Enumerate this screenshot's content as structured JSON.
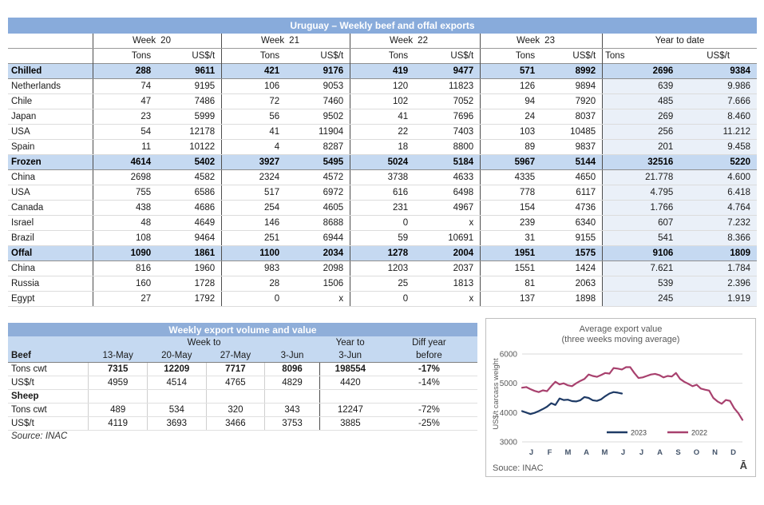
{
  "colors": {
    "title_bar": "#88abdb",
    "subtitle_bar": "#8faed9",
    "section_row": "#c5d9f1",
    "ytd_block": "#eaf0f8",
    "line_2023": "#1f3b66",
    "line_2022": "#a8416e"
  },
  "table1": {
    "title": "Uruguay – Weekly beef and offal exports",
    "week_label": "Week",
    "weeks": [
      "20",
      "21",
      "22",
      "23"
    ],
    "ytd_label": "Year to date",
    "tons_label": "Tons",
    "usd_label": "US$/t",
    "rows": [
      {
        "label": "Chilled",
        "type": "section",
        "values": [
          "288",
          "9611",
          "421",
          "9176",
          "419",
          "9477",
          "571",
          "8992",
          "2696",
          "9384"
        ]
      },
      {
        "label": "Netherlands",
        "type": "country",
        "values": [
          "74",
          "9195",
          "106",
          "9053",
          "120",
          "11823",
          "126",
          "9894",
          "639",
          "9.986"
        ]
      },
      {
        "label": "Chile",
        "type": "country",
        "values": [
          "47",
          "7486",
          "72",
          "7460",
          "102",
          "7052",
          "94",
          "7920",
          "485",
          "7.666"
        ]
      },
      {
        "label": "Japan",
        "type": "country",
        "values": [
          "23",
          "5999",
          "56",
          "9502",
          "41",
          "7696",
          "24",
          "8037",
          "269",
          "8.460"
        ]
      },
      {
        "label": "USA",
        "type": "country",
        "values": [
          "54",
          "12178",
          "41",
          "11904",
          "22",
          "7403",
          "103",
          "10485",
          "256",
          "11.212"
        ]
      },
      {
        "label": "Spain",
        "type": "country",
        "values": [
          "11",
          "10122",
          "4",
          "8287",
          "18",
          "8800",
          "89",
          "9837",
          "201",
          "9.458"
        ]
      },
      {
        "label": "Frozen",
        "type": "section",
        "values": [
          "4614",
          "5402",
          "3927",
          "5495",
          "5024",
          "5184",
          "5967",
          "5144",
          "32516",
          "5220"
        ]
      },
      {
        "label": "China",
        "type": "country",
        "values": [
          "2698",
          "4582",
          "2324",
          "4572",
          "3738",
          "4633",
          "4335",
          "4650",
          "21.778",
          "4.600"
        ]
      },
      {
        "label": "USA",
        "type": "country",
        "values": [
          "755",
          "6586",
          "517",
          "6972",
          "616",
          "6498",
          "778",
          "6117",
          "4.795",
          "6.418"
        ]
      },
      {
        "label": "Canada",
        "type": "country",
        "values": [
          "438",
          "4686",
          "254",
          "4605",
          "231",
          "4967",
          "154",
          "4736",
          "1.766",
          "4.764"
        ]
      },
      {
        "label": "Israel",
        "type": "country",
        "values": [
          "48",
          "4649",
          "146",
          "8688",
          "0",
          "x",
          "239",
          "6340",
          "607",
          "7.232"
        ]
      },
      {
        "label": "Brazil",
        "type": "country",
        "values": [
          "108",
          "9464",
          "251",
          "6944",
          "59",
          "10691",
          "31",
          "9155",
          "541",
          "8.366"
        ]
      },
      {
        "label": "Offal",
        "type": "section",
        "values": [
          "1090",
          "1861",
          "1100",
          "2034",
          "1278",
          "2004",
          "1951",
          "1575",
          "9106",
          "1809"
        ]
      },
      {
        "label": "China",
        "type": "country",
        "values": [
          "816",
          "1960",
          "983",
          "2098",
          "1203",
          "2037",
          "1551",
          "1424",
          "7.621",
          "1.784"
        ]
      },
      {
        "label": "Russia",
        "type": "country",
        "values": [
          "160",
          "1728",
          "28",
          "1506",
          "25",
          "1813",
          "81",
          "2063",
          "539",
          "2.396"
        ]
      },
      {
        "label": "Egypt",
        "type": "country",
        "values": [
          "27",
          "1792",
          "0",
          "x",
          "0",
          "x",
          "137",
          "1898",
          "245",
          "1.919"
        ]
      }
    ]
  },
  "table2": {
    "title": "Weekly export volume and value",
    "week_to_label": "Week to",
    "year_to_label": "Year to",
    "diff_label": "Diff year",
    "beef_label": "Beef",
    "col_headers": [
      "13-May",
      "20-May",
      "27-May",
      "3-Jun",
      "3-Jun",
      "before"
    ],
    "rows": [
      {
        "label": "Tons cwt",
        "section": false,
        "bold_values": true,
        "values": [
          "7315",
          "12209",
          "7717",
          "8096",
          "198554",
          "-17%"
        ]
      },
      {
        "label": "US$/t",
        "section": false,
        "bold_values": false,
        "values": [
          "4959",
          "4514",
          "4765",
          "4829",
          "4420",
          "-14%"
        ]
      },
      {
        "label": "Sheep",
        "section": true,
        "bold_values": false,
        "values": [
          "",
          "",
          "",
          "",
          "",
          ""
        ]
      },
      {
        "label": "Tons cwt",
        "section": false,
        "bold_values": false,
        "values": [
          "489",
          "534",
          "320",
          "343",
          "12247",
          "-72%"
        ]
      },
      {
        "label": "US$/t",
        "section": false,
        "bold_values": false,
        "values": [
          "4119",
          "3693",
          "3466",
          "3753",
          "3885",
          "-25%"
        ]
      }
    ],
    "source": "Source: INAC"
  },
  "chart_data": {
    "type": "line",
    "title": "Average export  value",
    "subtitle": "(three weeks moving average)",
    "ylabel": "US$/t carcass weight",
    "ylim": [
      3000,
      6000
    ],
    "yticks": [
      6000,
      5000,
      4000,
      3000
    ],
    "x_labels": [
      "J",
      "F",
      "M",
      "A",
      "M",
      "J",
      "J",
      "A",
      "S",
      "O",
      "N",
      "D"
    ],
    "x_unit": "week",
    "grid": true,
    "legend_position": "bottom-inside",
    "source": "Souce: INAC",
    "corner_mark": "Ā",
    "legend": [
      {
        "label": "2023",
        "color": "#1f3b66"
      },
      {
        "label": "2022",
        "color": "#a8416e"
      }
    ],
    "series": [
      {
        "name": "2022",
        "color": "#a8416e",
        "values": [
          4850,
          4870,
          4800,
          4740,
          4700,
          4760,
          4730,
          4900,
          5050,
          4960,
          5000,
          4930,
          4900,
          5000,
          5080,
          5150,
          5300,
          5250,
          5220,
          5280,
          5350,
          5330,
          5520,
          5500,
          5470,
          5550,
          5550,
          5350,
          5180,
          5200,
          5250,
          5300,
          5320,
          5280,
          5200,
          5250,
          5230,
          5350,
          5150,
          5050,
          4980,
          4900,
          4950,
          4820,
          4780,
          4750,
          4500,
          4380,
          4300,
          4430,
          4400,
          4150,
          3980,
          3750
        ]
      },
      {
        "name": "2023",
        "color": "#1f3b66",
        "values": [
          4050,
          4000,
          3950,
          3990,
          4050,
          4120,
          4200,
          4320,
          4260,
          4480,
          4430,
          4440,
          4390,
          4380,
          4420,
          4530,
          4500,
          4420,
          4400,
          4450,
          4560,
          4650,
          4700,
          4680,
          4650
        ]
      }
    ]
  }
}
